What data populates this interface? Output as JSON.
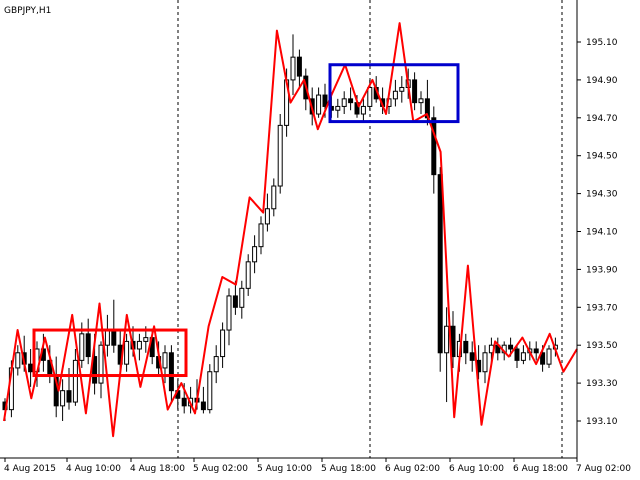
{
  "window": {
    "title": "GBPJPY,H1"
  },
  "chart_data": {
    "type": "candlestick",
    "symbol": "GBPJPY",
    "timeframe": "H1",
    "ylim": [
      192.98,
      195.3
    ],
    "y_ticks": [
      "195.10",
      "194.90",
      "194.70",
      "194.50",
      "194.30",
      "194.10",
      "193.90",
      "193.70",
      "193.50",
      "193.30",
      "193.10"
    ],
    "x_ticks": [
      "4 Aug 2015",
      "4 Aug 10:00",
      "4 Aug 18:00",
      "5 Aug 02:00",
      "5 Aug 10:00",
      "5 Aug 18:00",
      "6 Aug 02:00",
      "6 Aug 10:00",
      "6 Aug 18:00",
      "7 Aug 02:00"
    ],
    "period_separators": [
      "4 Aug 21:00",
      "5 Aug 21:00",
      "6 Aug 21:00"
    ],
    "candles": [
      [
        193.2,
        193.22,
        193.1,
        193.16
      ],
      [
        193.16,
        193.42,
        193.12,
        193.38
      ],
      [
        193.38,
        193.5,
        193.34,
        193.46
      ],
      [
        193.46,
        193.55,
        193.36,
        193.4
      ],
      [
        193.4,
        193.48,
        193.28,
        193.36
      ],
      [
        193.36,
        193.52,
        193.28,
        193.48
      ],
      [
        193.48,
        193.56,
        193.36,
        193.42
      ],
      [
        193.42,
        193.5,
        193.3,
        193.34
      ],
      [
        193.34,
        193.44,
        193.12,
        193.18
      ],
      [
        193.18,
        193.32,
        193.1,
        193.26
      ],
      [
        193.26,
        193.38,
        193.16,
        193.2
      ],
      [
        193.2,
        193.48,
        193.18,
        193.42
      ],
      [
        193.42,
        193.62,
        193.38,
        193.56
      ],
      [
        193.56,
        193.64,
        193.4,
        193.44
      ],
      [
        193.44,
        193.56,
        193.24,
        193.3
      ],
      [
        193.3,
        193.52,
        193.22,
        193.5
      ],
      [
        193.5,
        193.66,
        193.44,
        193.58
      ],
      [
        193.58,
        193.74,
        193.46,
        193.5
      ],
      [
        193.5,
        193.58,
        193.34,
        193.4
      ],
      [
        193.4,
        193.56,
        193.36,
        193.52
      ],
      [
        193.52,
        193.6,
        193.44,
        193.48
      ],
      [
        193.48,
        193.56,
        193.42,
        193.52
      ],
      [
        193.52,
        193.6,
        193.46,
        193.54
      ],
      [
        193.54,
        193.58,
        193.4,
        193.44
      ],
      [
        193.44,
        193.52,
        193.34,
        193.38
      ],
      [
        193.38,
        193.5,
        193.3,
        193.46
      ],
      [
        193.46,
        193.5,
        193.2,
        193.26
      ],
      [
        193.26,
        193.32,
        193.16,
        193.22
      ],
      [
        193.22,
        193.3,
        193.14,
        193.18
      ],
      [
        193.18,
        193.28,
        193.14,
        193.22
      ],
      [
        193.22,
        193.32,
        193.16,
        193.2
      ],
      [
        193.2,
        193.28,
        193.14,
        193.16
      ],
      [
        193.16,
        193.4,
        193.14,
        193.36
      ],
      [
        193.36,
        193.5,
        193.3,
        193.44
      ],
      [
        193.44,
        193.62,
        193.38,
        193.58
      ],
      [
        193.58,
        193.8,
        193.5,
        193.76
      ],
      [
        193.76,
        193.84,
        193.66,
        193.7
      ],
      [
        193.7,
        193.84,
        193.64,
        193.8
      ],
      [
        193.8,
        193.98,
        193.76,
        193.94
      ],
      [
        193.94,
        194.08,
        193.88,
        194.02
      ],
      [
        194.02,
        194.18,
        193.98,
        194.14
      ],
      [
        194.14,
        194.3,
        194.1,
        194.22
      ],
      [
        194.22,
        194.38,
        194.18,
        194.34
      ],
      [
        194.34,
        194.72,
        194.3,
        194.66
      ],
      [
        194.66,
        194.96,
        194.6,
        194.9
      ],
      [
        194.9,
        195.14,
        194.82,
        195.02
      ],
      [
        195.02,
        195.06,
        194.86,
        194.92
      ],
      [
        194.92,
        194.96,
        194.74,
        194.8
      ],
      [
        194.8,
        194.86,
        194.66,
        194.72
      ],
      [
        194.72,
        194.86,
        194.7,
        194.82
      ],
      [
        194.82,
        194.88,
        194.7,
        194.76
      ],
      [
        194.76,
        194.82,
        194.7,
        194.74
      ],
      [
        194.74,
        194.8,
        194.7,
        194.76
      ],
      [
        194.76,
        194.84,
        194.72,
        194.8
      ],
      [
        194.8,
        194.86,
        194.74,
        194.78
      ],
      [
        194.78,
        194.82,
        194.7,
        194.72
      ],
      [
        194.72,
        194.8,
        194.68,
        194.76
      ],
      [
        194.76,
        194.9,
        194.74,
        194.86
      ],
      [
        194.86,
        194.92,
        194.78,
        194.8
      ],
      [
        194.8,
        194.86,
        194.72,
        194.76
      ],
      [
        194.76,
        194.82,
        194.72,
        194.8
      ],
      [
        194.8,
        194.9,
        194.76,
        194.84
      ],
      [
        194.84,
        194.92,
        194.78,
        194.86
      ],
      [
        194.86,
        194.96,
        194.8,
        194.9
      ],
      [
        194.9,
        194.94,
        194.74,
        194.78
      ],
      [
        194.78,
        194.84,
        194.72,
        194.8
      ],
      [
        194.8,
        194.9,
        194.66,
        194.7
      ],
      [
        194.7,
        194.76,
        194.3,
        194.4
      ],
      [
        194.4,
        194.44,
        193.36,
        193.46
      ],
      [
        193.46,
        193.7,
        193.2,
        193.6
      ],
      [
        193.6,
        193.68,
        193.38,
        193.44
      ],
      [
        193.44,
        193.56,
        193.36,
        193.52
      ],
      [
        193.52,
        193.56,
        193.4,
        193.46
      ],
      [
        193.46,
        193.52,
        193.36,
        193.42
      ],
      [
        193.42,
        193.5,
        193.32,
        193.36
      ],
      [
        193.36,
        193.5,
        193.3,
        193.46
      ],
      [
        193.46,
        193.54,
        193.4,
        193.5
      ],
      [
        193.5,
        193.54,
        193.42,
        193.46
      ],
      [
        193.46,
        193.52,
        193.42,
        193.5
      ],
      [
        193.5,
        193.54,
        193.44,
        193.48
      ],
      [
        193.48,
        193.5,
        193.38,
        193.42
      ],
      [
        193.42,
        193.5,
        193.4,
        193.46
      ],
      [
        193.46,
        193.52,
        193.42,
        193.48
      ],
      [
        193.48,
        193.52,
        193.42,
        193.46
      ],
      [
        193.46,
        193.5,
        193.36,
        193.4
      ],
      [
        193.4,
        193.5,
        193.38,
        193.48
      ],
      [
        193.48,
        193.54,
        193.44,
        193.5
      ]
    ],
    "zigzag_color": "#ff0000",
    "zigzag": [
      193.1,
      193.58,
      193.22,
      193.54,
      193.26,
      193.66,
      193.14,
      193.72,
      193.02,
      193.66,
      193.28,
      193.6,
      193.16,
      193.3,
      193.14,
      193.6,
      193.86,
      193.82,
      194.28,
      194.2,
      195.16,
      194.78,
      194.9,
      194.64,
      194.82,
      194.98,
      194.76,
      194.9,
      194.72,
      195.2,
      194.68,
      194.72,
      194.52,
      193.12,
      193.92,
      193.08,
      193.52,
      193.44,
      193.54,
      193.4,
      193.56,
      193.36,
      193.48
    ],
    "box_low": {
      "color": "#ff0000",
      "high": 193.58,
      "low": 193.34
    },
    "box_high": {
      "color": "#0000cc",
      "high": 194.98,
      "low": 194.68
    }
  }
}
